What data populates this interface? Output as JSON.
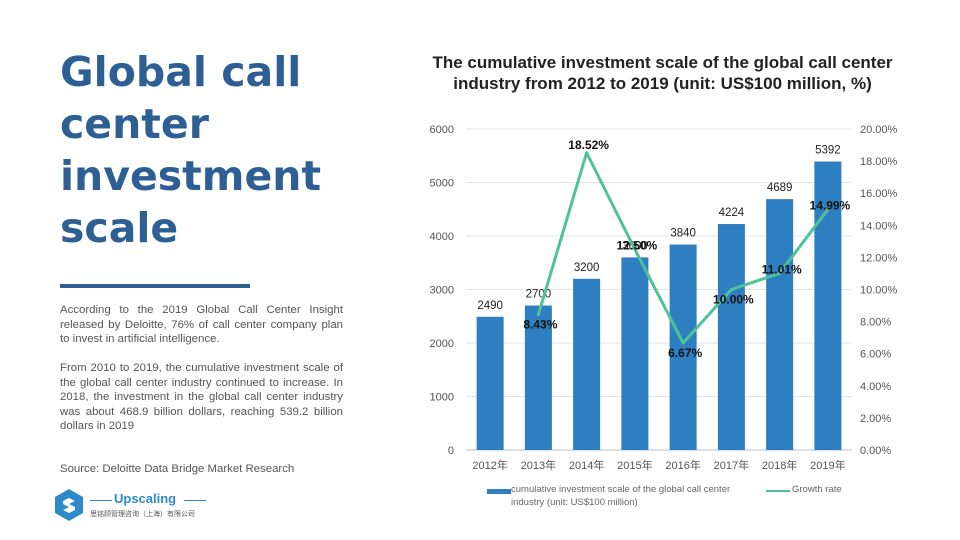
{
  "headline": "Global call\ncenter\ninvestment\nscale",
  "paragraphs": [
    "According to the 2019 Global Call Center Insight released by Deloitte, 76% of call center company plan to invest in artificial intelligence.",
    "From 2010 to 2019, the cumulative investment scale of the global call center industry continued to increase. In 2018, the investment in the global call center industry was about 468.9 billion dollars, reaching 539.2 billion dollars in 2019"
  ],
  "source": "Source: Deloitte Data Bridge Market Research",
  "logo": {
    "name": "Upscaling",
    "subtitle": "思铭顾管理咨询（上海）有限公司"
  },
  "colors": {
    "accent": "#2e5f94",
    "bar": "#2e7fc2",
    "line": "#4fc298"
  },
  "chart_data": {
    "type": "bar",
    "title": "The cumulative investment scale of the global call center industry from 2012 to 2019 (unit: US$100 million, %)",
    "categories": [
      "2012年",
      "2013年",
      "2014年",
      "2015年",
      "2016年",
      "2017年",
      "2018年",
      "2019年"
    ],
    "series": [
      {
        "name": "cumulative investment scale of the global call center industry (unit: US$100 million)",
        "type": "bar",
        "axis": "left",
        "values": [
          2490,
          2700,
          3200,
          3600,
          3840,
          4224,
          4689,
          5392
        ],
        "labels": [
          "2490",
          "2700",
          "3200",
          "3600",
          "3840",
          "4224",
          "4689",
          "5392"
        ]
      },
      {
        "name": "Growth rate",
        "type": "line",
        "axis": "right",
        "values": [
          null,
          8.43,
          18.52,
          12.5,
          6.67,
          10.0,
          11.01,
          14.99
        ],
        "labels": [
          "",
          "8.43%",
          "18.52%",
          "12.50%",
          "6.67%",
          "10.00%",
          "11.01%",
          "14.99%"
        ]
      }
    ],
    "y_left": {
      "range": [
        0,
        6000
      ],
      "ticks": [
        "0",
        "1000",
        "2000",
        "3000",
        "4000",
        "5000",
        "6000"
      ]
    },
    "y_right": {
      "range": [
        0,
        20
      ],
      "ticks": [
        "0.00%",
        "2.00%",
        "4.00%",
        "6.00%",
        "8.00%",
        "10.00%",
        "12.00%",
        "14.00%",
        "16.00%",
        "18.00%",
        "20.00%"
      ]
    },
    "grid": true,
    "legend": "bottom"
  }
}
